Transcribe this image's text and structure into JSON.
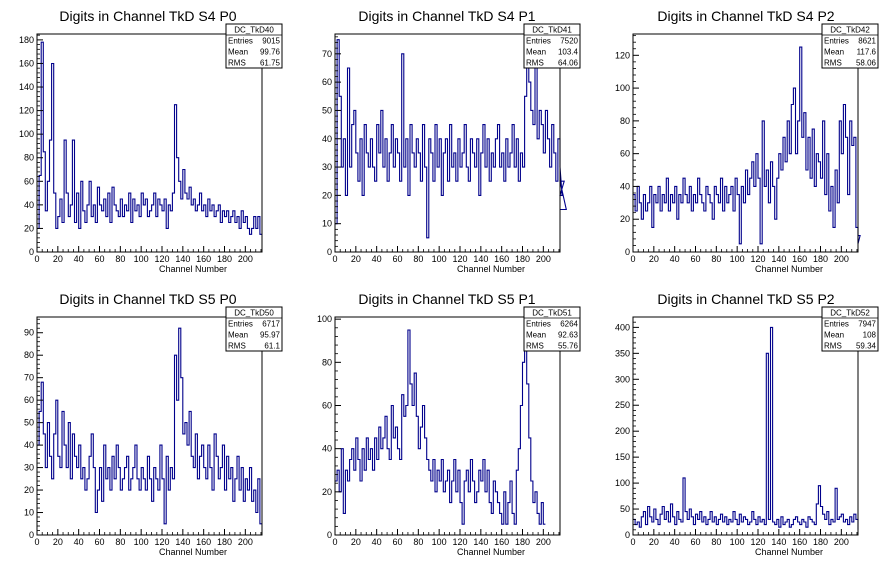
{
  "colors": {
    "line": "#00008b",
    "axis": "#000000",
    "background": "#ffffff"
  },
  "chart_data": [
    {
      "type": "histogram",
      "title": "Digits in Channel TkD S4 P0",
      "xlabel": "Channel Number",
      "xlim": [
        0,
        216
      ],
      "ylim": [
        0,
        185
      ],
      "xticks": [
        0,
        20,
        40,
        60,
        80,
        100,
        120,
        140,
        160,
        180,
        200
      ],
      "yticks": [
        0,
        20,
        40,
        60,
        80,
        100,
        120,
        140,
        160,
        180
      ],
      "stats": {
        "name": "DC_TkD40",
        "rows": [
          [
            "Entries",
            "9015"
          ],
          [
            "Mean",
            "99.76"
          ],
          [
            "RMS",
            "61.75"
          ]
        ]
      },
      "bin_width": 2,
      "values": [
        20,
        65,
        178,
        85,
        35,
        60,
        95,
        160,
        50,
        20,
        30,
        45,
        25,
        95,
        50,
        30,
        40,
        95,
        25,
        50,
        20,
        60,
        35,
        25,
        40,
        60,
        30,
        40,
        25,
        55,
        40,
        35,
        45,
        30,
        50,
        25,
        55,
        40,
        35,
        30,
        45,
        30,
        40,
        35,
        50,
        25,
        45,
        35,
        40,
        30,
        50,
        40,
        45,
        30,
        35,
        40,
        50,
        30,
        45,
        40,
        35,
        45,
        20,
        40,
        35,
        50,
        125,
        80,
        60,
        45,
        70,
        50,
        45,
        55,
        40,
        45,
        35,
        40,
        50,
        35,
        40,
        30,
        45,
        35,
        40,
        30,
        35,
        40,
        25,
        35,
        30,
        35,
        25,
        30,
        35,
        25,
        30,
        20,
        35,
        25,
        30,
        20,
        15,
        20,
        30,
        20,
        30,
        15
      ]
    },
    {
      "type": "histogram",
      "title": "Digits in Channel TkD S4 P1",
      "xlabel": "Channel Number",
      "xlim": [
        0,
        216
      ],
      "ylim": [
        0,
        77
      ],
      "xticks": [
        0,
        20,
        40,
        60,
        80,
        100,
        120,
        140,
        160,
        180,
        200
      ],
      "yticks": [
        0,
        10,
        20,
        30,
        40,
        50,
        60,
        70
      ],
      "stats": {
        "name": "DC_TkD41",
        "rows": [
          [
            "Entries",
            "7520"
          ],
          [
            "Mean",
            "103.4"
          ],
          [
            "RMS",
            "64.06"
          ]
        ]
      },
      "bin_width": 2,
      "values": [
        10,
        75,
        55,
        30,
        40,
        20,
        65,
        30,
        45,
        50,
        35,
        25,
        40,
        20,
        45,
        35,
        30,
        40,
        30,
        25,
        45,
        35,
        50,
        30,
        40,
        25,
        35,
        45,
        30,
        40,
        35,
        25,
        70,
        30,
        40,
        20,
        45,
        35,
        30,
        40,
        35,
        25,
        45,
        30,
        5,
        40,
        35,
        25,
        45,
        30,
        40,
        20,
        35,
        40,
        25,
        45,
        30,
        35,
        25,
        40,
        30,
        35,
        45,
        30,
        25,
        40,
        35,
        30,
        40,
        20,
        35,
        45,
        30,
        40,
        25,
        35,
        30,
        40,
        45,
        30,
        35,
        25,
        40,
        30,
        35,
        45,
        30,
        40,
        25,
        35,
        30,
        55,
        70,
        60,
        50,
        45,
        65,
        40,
        50,
        45,
        35,
        50,
        40,
        30,
        45,
        35,
        25,
        40,
        30,
        20,
        25,
        15
      ]
    },
    {
      "type": "histogram",
      "title": "Digits in Channel TkD S4 P2",
      "xlabel": "Channel Number",
      "xlim": [
        0,
        216
      ],
      "ylim": [
        0,
        133
      ],
      "xticks": [
        0,
        20,
        40,
        60,
        80,
        100,
        120,
        140,
        160,
        180,
        200
      ],
      "yticks": [
        0,
        20,
        40,
        60,
        80,
        100,
        120
      ],
      "stats": {
        "name": "DC_TkD42",
        "rows": [
          [
            "Entries",
            "8621"
          ],
          [
            "Mean",
            "117.6"
          ],
          [
            "RMS",
            "58.06"
          ]
        ]
      },
      "bin_width": 2,
      "values": [
        35,
        25,
        40,
        30,
        20,
        35,
        25,
        30,
        40,
        15,
        35,
        30,
        40,
        25,
        35,
        30,
        45,
        25,
        35,
        30,
        40,
        20,
        35,
        30,
        45,
        35,
        30,
        40,
        25,
        35,
        30,
        45,
        35,
        30,
        25,
        40,
        35,
        30,
        20,
        40,
        35,
        30,
        45,
        25,
        40,
        30,
        35,
        40,
        25,
        45,
        35,
        5,
        40,
        30,
        50,
        35,
        45,
        55,
        40,
        60,
        45,
        5,
        80,
        40,
        50,
        30,
        55,
        40,
        20,
        45,
        60,
        50,
        70,
        55,
        80,
        60,
        90,
        100,
        60,
        80,
        125,
        70,
        85,
        50,
        70,
        45,
        75,
        40,
        60,
        55,
        45,
        80,
        35,
        60,
        25,
        40,
        15,
        50,
        30,
        80,
        60,
        90,
        70,
        35,
        80,
        65,
        70,
        15,
        5,
        10
      ]
    },
    {
      "type": "histogram",
      "title": "Digits in Channel TkD S5 P0",
      "xlabel": "Channel Number",
      "xlim": [
        0,
        216
      ],
      "ylim": [
        0,
        97
      ],
      "xticks": [
        0,
        20,
        40,
        60,
        80,
        100,
        120,
        140,
        160,
        180,
        200
      ],
      "yticks": [
        0,
        10,
        20,
        30,
        40,
        50,
        60,
        70,
        80,
        90
      ],
      "stats": {
        "name": "DC_TkD50",
        "rows": [
          [
            "Entries",
            "6717"
          ],
          [
            "Mean",
            "95.97"
          ],
          [
            "RMS",
            "61.1"
          ]
        ]
      },
      "bin_width": 2,
      "values": [
        40,
        55,
        68,
        45,
        30,
        50,
        35,
        25,
        45,
        60,
        35,
        30,
        55,
        40,
        30,
        50,
        25,
        45,
        35,
        30,
        40,
        25,
        30,
        20,
        25,
        35,
        45,
        30,
        10,
        20,
        30,
        15,
        40,
        25,
        30,
        20,
        35,
        25,
        40,
        30,
        20,
        25,
        30,
        35,
        20,
        25,
        30,
        40,
        25,
        20,
        30,
        25,
        20,
        35,
        25,
        15,
        30,
        25,
        20,
        40,
        25,
        5,
        35,
        20,
        30,
        25,
        80,
        60,
        92,
        70,
        45,
        50,
        40,
        55,
        35,
        30,
        45,
        25,
        35,
        40,
        30,
        25,
        40,
        30,
        20,
        45,
        35,
        25,
        30,
        40,
        20,
        35,
        25,
        30,
        15,
        25,
        35,
        20,
        30,
        15,
        25,
        20,
        30,
        15,
        20,
        10,
        25,
        5
      ]
    },
    {
      "type": "histogram",
      "title": "Digits in Channel TkD S5 P1",
      "xlabel": "Channel Number",
      "xlim": [
        0,
        216
      ],
      "ylim": [
        0,
        101
      ],
      "xticks": [
        0,
        20,
        40,
        60,
        80,
        100,
        120,
        140,
        160,
        180,
        200
      ],
      "yticks": [
        0,
        20,
        40,
        60,
        80,
        100
      ],
      "stats": {
        "name": "DC_TkD51",
        "rows": [
          [
            "Entries",
            "6264"
          ],
          [
            "Mean",
            "92.63"
          ],
          [
            "RMS",
            "55.76"
          ]
        ]
      },
      "bin_width": 2,
      "values": [
        25,
        30,
        20,
        40,
        10,
        30,
        25,
        35,
        40,
        30,
        45,
        35,
        25,
        40,
        30,
        45,
        35,
        40,
        30,
        45,
        35,
        50,
        40,
        45,
        55,
        40,
        35,
        60,
        45,
        50,
        40,
        35,
        65,
        55,
        60,
        95,
        70,
        60,
        75,
        55,
        40,
        50,
        60,
        45,
        35,
        30,
        25,
        35,
        20,
        30,
        25,
        35,
        20,
        25,
        30,
        15,
        25,
        35,
        20,
        30,
        15,
        5,
        25,
        30,
        20,
        35,
        25,
        15,
        20,
        30,
        25,
        35,
        20,
        30,
        15,
        10,
        25,
        20,
        15,
        10,
        5,
        20,
        5,
        15,
        25,
        10,
        5,
        30,
        40,
        60,
        80,
        100,
        70,
        45,
        25,
        15,
        20,
        10,
        5,
        15,
        5
      ]
    },
    {
      "type": "histogram",
      "title": "Digits in Channel TkD S5 P2",
      "xlabel": "Channel Number",
      "xlim": [
        0,
        216
      ],
      "ylim": [
        0,
        420
      ],
      "xticks": [
        0,
        20,
        40,
        60,
        80,
        100,
        120,
        140,
        160,
        180,
        200
      ],
      "yticks": [
        0,
        50,
        100,
        150,
        200,
        250,
        300,
        350,
        400
      ],
      "stats": {
        "name": "DC_TkD52",
        "rows": [
          [
            "Entries",
            "7947"
          ],
          [
            "Mean",
            "108"
          ],
          [
            "RMS",
            "59.34"
          ]
        ]
      },
      "bin_width": 2,
      "values": [
        30,
        20,
        25,
        15,
        35,
        45,
        20,
        55,
        35,
        25,
        50,
        30,
        20,
        40,
        55,
        30,
        45,
        25,
        60,
        35,
        20,
        45,
        30,
        25,
        110,
        45,
        30,
        50,
        35,
        20,
        40,
        30,
        45,
        25,
        35,
        20,
        30,
        45,
        25,
        35,
        20,
        30,
        40,
        25,
        35,
        20,
        30,
        25,
        45,
        30,
        20,
        40,
        25,
        35,
        30,
        20,
        25,
        45,
        30,
        20,
        35,
        25,
        30,
        20,
        350,
        30,
        400,
        25,
        20,
        30,
        15,
        35,
        20,
        25,
        30,
        15,
        20,
        30,
        35,
        25,
        20,
        30,
        25,
        15,
        35,
        30,
        25,
        20,
        60,
        95,
        55,
        40,
        30,
        45,
        20,
        30,
        25,
        90,
        30,
        35,
        40,
        25,
        30,
        20,
        35,
        25,
        40,
        30,
        10
      ]
    }
  ]
}
